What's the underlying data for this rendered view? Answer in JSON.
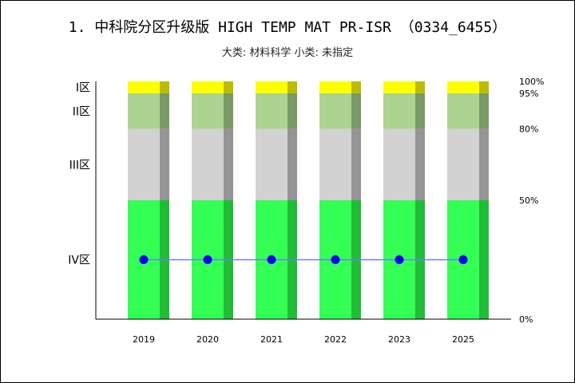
{
  "header": {
    "title": "1. 中科院分区升级版 HIGH TEMP MAT PR-ISR （0334_6455）",
    "subtitle": "大类: 材料科学 小类: 未指定"
  },
  "chart_data": {
    "type": "bar",
    "categories": [
      "2019",
      "2020",
      "2021",
      "2022",
      "2023",
      "2025"
    ],
    "zones": [
      {
        "name": "IV区",
        "from": 0,
        "to": 50,
        "color": "#33ff55",
        "shade": "#22bb3a"
      },
      {
        "name": "III区",
        "from": 50,
        "to": 80,
        "color": "#d3d2d3",
        "shade": "#969596"
      },
      {
        "name": "II区",
        "from": 80,
        "to": 95,
        "color": "#add391",
        "shade": "#7a9966"
      },
      {
        "name": "I区",
        "from": 95,
        "to": 100,
        "color": "#ffff00",
        "shade": "#bbbb00"
      }
    ],
    "right_ticks": [
      "100%",
      "95%",
      "80%",
      "50%",
      "0%"
    ],
    "right_tick_values": [
      100,
      95,
      80,
      50,
      0
    ],
    "series": [
      {
        "values": [
          25,
          25,
          25,
          25,
          25,
          25
        ],
        "color": "#0000ff",
        "line_color": "#6f7bff"
      }
    ],
    "ylim": [
      0,
      100
    ],
    "grid": false,
    "legend": "none"
  }
}
